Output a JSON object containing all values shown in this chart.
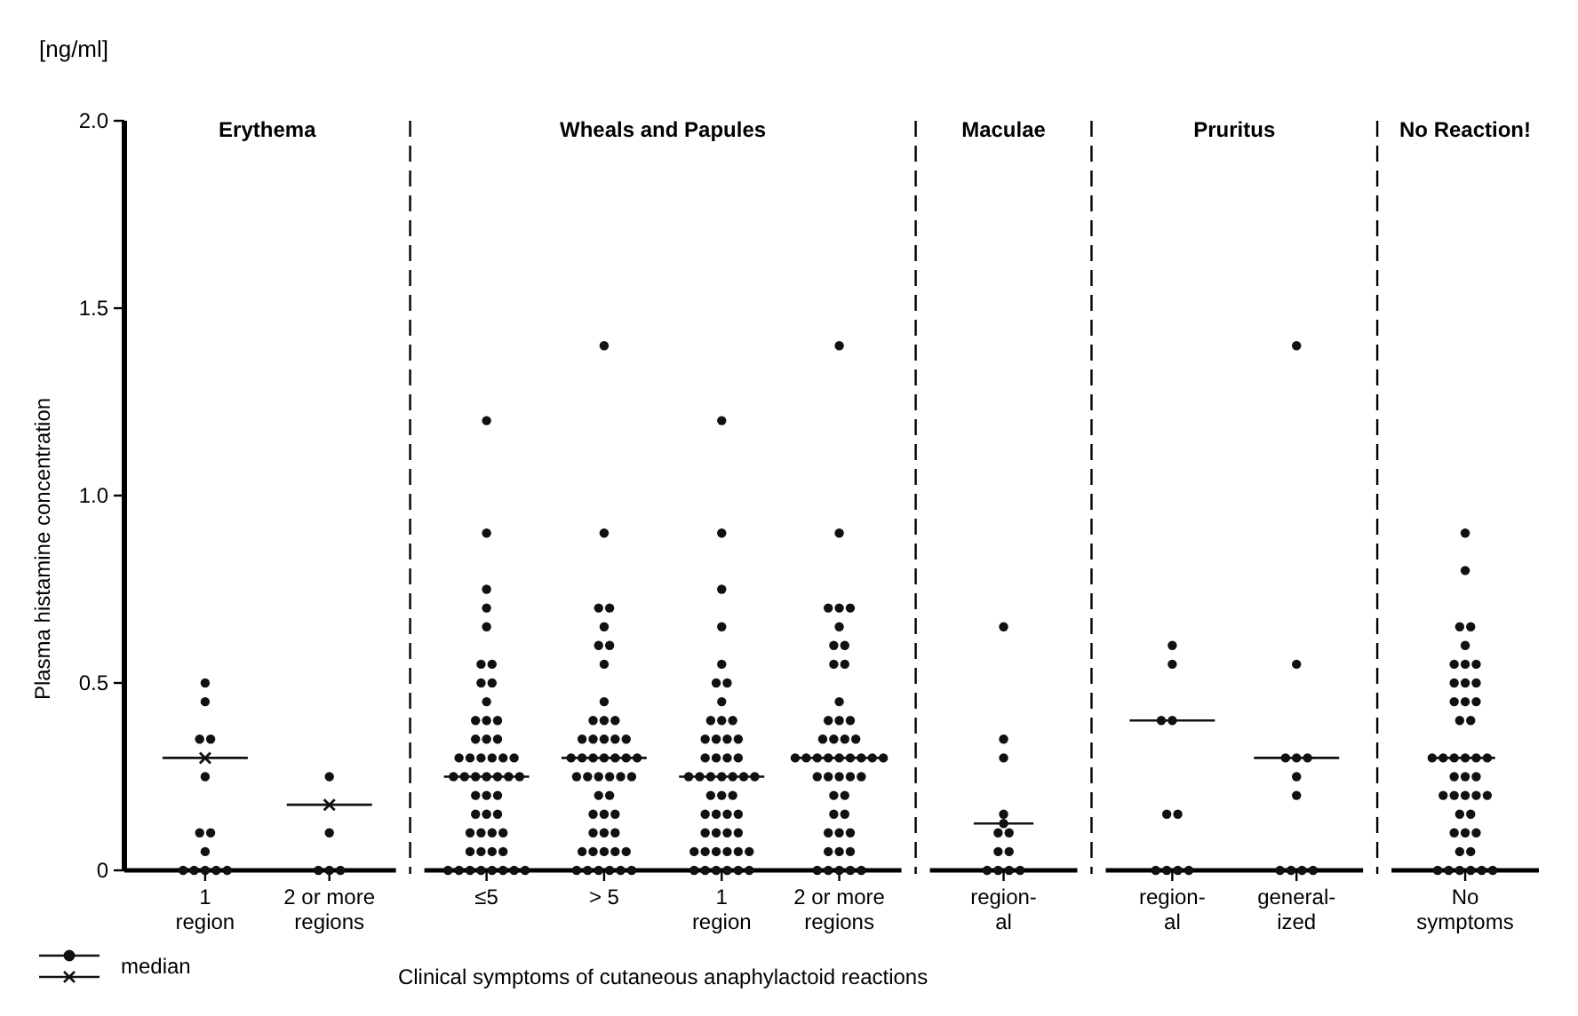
{
  "chart_data": [
    {
      "type": "scatter",
      "title": "Erythema",
      "ylabel": "Plasma histamine concentration",
      "annotations": [
        "[ng/ml]"
      ],
      "legend": "bottom left",
      "categories": [
        "1\nregion",
        "2 or more\nregions"
      ],
      "ylim": [
        0,
        2
      ],
      "yticks": [
        {
          "value": 0,
          "label": "0"
        },
        0.5,
        {
          "value": 1,
          "label": "1.0"
        },
        1.5,
        {
          "value": 2,
          "label": "2.0"
        }
      ],
      "series": [
        {
          "color": "#111111",
          "marker": "circle",
          "x": [
            "1\nregion",
            "1\nregion",
            "1\nregion",
            "1\nregion",
            "1\nregion",
            "1\nregion",
            "1\nregion",
            "1\nregion",
            "1\nregion",
            "1\nregion",
            "1\nregion",
            "1\nregion",
            "1\nregion",
            "2 or more\nregions",
            "2 or more\nregions",
            "2 or more\nregions",
            "2 or more\nregions",
            "2 or more\nregions"
          ],
          "values": [
            0.5,
            0.45,
            0.35,
            0.35,
            0.25,
            0.1,
            0.1,
            0.05,
            0,
            0,
            0,
            0,
            0,
            0.25,
            0.1,
            0,
            0,
            0
          ]
        },
        {
          "name": "median",
          "color": "#111111",
          "marker": "cross",
          "line_style": "solid",
          "x": [
            "1\nregion",
            "2 or more\nregions"
          ],
          "values": [
            0.3,
            0.175
          ]
        }
      ]
    },
    {
      "type": "scatter",
      "title": "Wheals and Papules",
      "xlabel": "Clinical symptoms of cutaneous anaphylactoid reactions",
      "tick_labels": "x",
      "categories": [
        "≤5",
        "> 5",
        "1\nregion",
        "2 or more\nregions"
      ],
      "ylim": [
        0,
        2
      ],
      "series": [
        {
          "color": "#111111",
          "marker": "circle",
          "x": [
            "≤5",
            "≤5",
            "≤5",
            "≤5",
            "≤5",
            "≤5",
            "≤5",
            "≤5",
            "≤5",
            "≤5",
            "≤5",
            "≤5",
            "≤5",
            "≤5",
            "≤5",
            "≤5",
            "≤5",
            "≤5",
            "≤5",
            "≤5",
            "≤5",
            "≤5",
            "≤5",
            "≤5",
            "≤5",
            "≤5",
            "≤5",
            "≤5",
            "≤5",
            "≤5",
            "≤5",
            "≤5",
            "≤5",
            "≤5",
            "≤5",
            "≤5",
            "≤5",
            "≤5",
            "≤5",
            "≤5",
            "≤5",
            "≤5",
            "≤5",
            "≤5",
            "≤5",
            "≤5",
            "≤5",
            "≤5",
            "≤5",
            "≤5"
          ],
          "values": [
            1.2,
            0.9,
            0.75,
            0.7,
            0.65,
            0.55,
            0.55,
            0.5,
            0.5,
            0.45,
            0.4,
            0.4,
            0.4,
            0.35,
            0.35,
            0.35,
            0.3,
            0.3,
            0.3,
            0.3,
            0.3,
            0.3,
            0.25,
            0.25,
            0.25,
            0.25,
            0.25,
            0.25,
            0.2,
            0.2,
            0.2,
            0.15,
            0.15,
            0.15,
            0.1,
            0.1,
            0.1,
            0.1,
            0.05,
            0.05,
            0.05,
            0.05,
            0,
            0,
            0,
            0,
            0,
            0,
            0,
            0
          ]
        },
        {
          "color": "#111111",
          "marker": "circle",
          "x": [
            "> 5",
            "> 5",
            "> 5",
            "> 5",
            "> 5",
            "> 5",
            "> 5",
            "> 5",
            "> 5",
            "> 5",
            "> 5",
            "> 5",
            "> 5",
            "> 5",
            "> 5",
            "> 5",
            "> 5",
            "> 5",
            "> 5",
            "> 5",
            "> 5",
            "> 5",
            "> 5",
            "> 5",
            "> 5",
            "> 5",
            "> 5",
            "> 5",
            "> 5",
            "> 5",
            "> 5",
            "> 5",
            "> 5",
            "> 5",
            "> 5",
            "> 5",
            "> 5",
            "> 5",
            "> 5",
            "> 5",
            "> 5",
            "> 5",
            "> 5",
            "> 5",
            "> 5",
            "> 5",
            "> 5",
            "> 5"
          ],
          "values": [
            1.4,
            0.9,
            0.7,
            0.7,
            0.65,
            0.6,
            0.6,
            0.55,
            0.45,
            0.4,
            0.4,
            0.4,
            0.35,
            0.35,
            0.35,
            0.35,
            0.35,
            0.3,
            0.3,
            0.3,
            0.3,
            0.3,
            0.3,
            0.25,
            0.25,
            0.25,
            0.25,
            0.25,
            0.25,
            0.2,
            0.2,
            0.15,
            0.15,
            0.15,
            0.1,
            0.1,
            0.1,
            0.05,
            0.05,
            0.05,
            0.05,
            0.05,
            0,
            0,
            0,
            0,
            0,
            0
          ]
        },
        {
          "color": "#111111",
          "marker": "circle",
          "x": [
            "1\nregion",
            "1\nregion",
            "1\nregion",
            "1\nregion",
            "1\nregion",
            "1\nregion",
            "1\nregion",
            "1\nregion",
            "1\nregion",
            "1\nregion",
            "1\nregion",
            "1\nregion",
            "1\nregion",
            "1\nregion",
            "1\nregion",
            "1\nregion",
            "1\nregion",
            "1\nregion",
            "1\nregion",
            "1\nregion",
            "1\nregion",
            "1\nregion",
            "1\nregion",
            "1\nregion",
            "1\nregion",
            "1\nregion",
            "1\nregion",
            "1\nregion",
            "1\nregion",
            "1\nregion",
            "1\nregion",
            "1\nregion",
            "1\nregion",
            "1\nregion",
            "1\nregion",
            "1\nregion",
            "1\nregion",
            "1\nregion",
            "1\nregion",
            "1\nregion",
            "1\nregion",
            "1\nregion",
            "1\nregion",
            "1\nregion",
            "1\nregion",
            "1\nregion",
            "1\nregion",
            "1\nregion"
          ],
          "values": [
            1.2,
            0.9,
            0.75,
            0.65,
            0.55,
            0.5,
            0.5,
            0.45,
            0.4,
            0.4,
            0.4,
            0.35,
            0.35,
            0.35,
            0.35,
            0.3,
            0.3,
            0.3,
            0.3,
            0.25,
            0.25,
            0.25,
            0.25,
            0.25,
            0.25,
            0.2,
            0.2,
            0.2,
            0.15,
            0.15,
            0.15,
            0.15,
            0.1,
            0.1,
            0.1,
            0.1,
            0.05,
            0.05,
            0.05,
            0.05,
            0.05,
            0.05,
            0,
            0,
            0,
            0,
            0,
            0
          ]
        },
        {
          "color": "#111111",
          "marker": "circle",
          "x": [
            "2 or more\nregions",
            "2 or more\nregions",
            "2 or more\nregions",
            "2 or more\nregions",
            "2 or more\nregions",
            "2 or more\nregions",
            "2 or more\nregions",
            "2 or more\nregions",
            "2 or more\nregions",
            "2 or more\nregions",
            "2 or more\nregions",
            "2 or more\nregions",
            "2 or more\nregions",
            "2 or more\nregions",
            "2 or more\nregions",
            "2 or more\nregions",
            "2 or more\nregions",
            "2 or more\nregions",
            "2 or more\nregions",
            "2 or more\nregions",
            "2 or more\nregions",
            "2 or more\nregions",
            "2 or more\nregions",
            "2 or more\nregions",
            "2 or more\nregions",
            "2 or more\nregions",
            "2 or more\nregions",
            "2 or more\nregions",
            "2 or more\nregions",
            "2 or more\nregions",
            "2 or more\nregions",
            "2 or more\nregions",
            "2 or more\nregions",
            "2 or more\nregions",
            "2 or more\nregions",
            "2 or more\nregions",
            "2 or more\nregions",
            "2 or more\nregions",
            "2 or more\nregions",
            "2 or more\nregions",
            "2 or more\nregions",
            "2 or more\nregions",
            "2 or more\nregions",
            "2 or more\nregions",
            "2 or more\nregions",
            "2 or more\nregions"
          ],
          "values": [
            1.4,
            0.9,
            0.7,
            0.7,
            0.7,
            0.65,
            0.6,
            0.6,
            0.55,
            0.55,
            0.45,
            0.4,
            0.4,
            0.4,
            0.35,
            0.35,
            0.35,
            0.35,
            0.3,
            0.3,
            0.3,
            0.3,
            0.3,
            0.3,
            0.3,
            0.3,
            0.25,
            0.25,
            0.25,
            0.25,
            0.25,
            0.2,
            0.2,
            0.15,
            0.15,
            0.1,
            0.1,
            0.1,
            0.05,
            0.05,
            0.05,
            0,
            0,
            0,
            0,
            0
          ]
        },
        {
          "color": "#111111",
          "marker": "circle",
          "line_style": "solid",
          "x": [
            "≤5",
            "> 5",
            "1\nregion",
            "2 or more\nregions"
          ],
          "values": [
            0.25,
            0.3,
            0.25,
            0.3
          ]
        }
      ]
    },
    {
      "type": "scatter",
      "title": "Maculae",
      "tick_labels": "x",
      "categories": [
        "region-\nal"
      ],
      "ylim": [
        0,
        2
      ],
      "series": [
        {
          "color": "#111111",
          "marker": "circle",
          "x": [
            "region-\nal",
            "region-\nal",
            "region-\nal",
            "region-\nal",
            "region-\nal",
            "region-\nal",
            "region-\nal",
            "region-\nal",
            "region-\nal",
            "region-\nal",
            "region-\nal",
            "region-\nal"
          ],
          "values": [
            0.65,
            0.35,
            0.3,
            0.15,
            0.1,
            0.1,
            0.05,
            0.05,
            0,
            0,
            0,
            0
          ]
        },
        {
          "color": "#111111",
          "marker": "circle",
          "line_style": "solid",
          "x": [
            "region-\nal"
          ],
          "values": [
            0.125
          ]
        }
      ]
    },
    {
      "type": "scatter",
      "title": "Pruritus",
      "tick_labels": "x",
      "categories": [
        "region-\nal",
        "general-\nized"
      ],
      "ylim": [
        0,
        2
      ],
      "series": [
        {
          "color": "#111111",
          "marker": "circle",
          "x": [
            "region-\nal",
            "region-\nal",
            "region-\nal",
            "region-\nal",
            "region-\nal",
            "region-\nal",
            "region-\nal",
            "region-\nal",
            "region-\nal",
            "general-\nized",
            "general-\nized",
            "general-\nized",
            "general-\nized",
            "general-\nized",
            "general-\nized",
            "general-\nized",
            "general-\nized",
            "general-\nized",
            "general-\nized"
          ],
          "values": [
            0.6,
            0.55,
            0.4,
            0.15,
            0.15,
            0,
            0,
            0,
            0,
            1.4,
            0.55,
            0.3,
            0.3,
            0.25,
            0.2,
            0,
            0,
            0,
            0
          ]
        },
        {
          "color": "#111111",
          "marker": "circle",
          "line_style": "solid",
          "x": [
            "region-\nal",
            "general-\nized"
          ],
          "values": [
            0.4,
            0.3
          ]
        }
      ]
    },
    {
      "type": "scatter",
      "title": "No Reaction!",
      "tick_labels": "x",
      "categories": [
        "No\nsymptoms"
      ],
      "ylim": [
        0,
        2
      ],
      "series": [
        {
          "color": "#111111",
          "marker": "circle",
          "x": [
            "No\nsymptoms",
            "No\nsymptoms",
            "No\nsymptoms",
            "No\nsymptoms",
            "No\nsymptoms",
            "No\nsymptoms",
            "No\nsymptoms",
            "No\nsymptoms",
            "No\nsymptoms",
            "No\nsymptoms",
            "No\nsymptoms",
            "No\nsymptoms",
            "No\nsymptoms",
            "No\nsymptoms",
            "No\nsymptoms",
            "No\nsymptoms",
            "No\nsymptoms",
            "No\nsymptoms",
            "No\nsymptoms",
            "No\nsymptoms",
            "No\nsymptoms",
            "No\nsymptoms",
            "No\nsymptoms",
            "No\nsymptoms",
            "No\nsymptoms",
            "No\nsymptoms",
            "No\nsymptoms",
            "No\nsymptoms",
            "No\nsymptoms",
            "No\nsymptoms",
            "No\nsymptoms",
            "No\nsymptoms",
            "No\nsymptoms",
            "No\nsymptoms",
            "No\nsymptoms",
            "No\nsymptoms",
            "No\nsymptoms",
            "No\nsymptoms",
            "No\nsymptoms",
            "No\nsymptoms",
            "No\nsymptoms",
            "No\nsymptoms"
          ],
          "values": [
            0.9,
            0.8,
            0.65,
            0.65,
            0.6,
            0.55,
            0.55,
            0.55,
            0.5,
            0.5,
            0.5,
            0.45,
            0.45,
            0.45,
            0.4,
            0.4,
            0.3,
            0.3,
            0.3,
            0.3,
            0.3,
            0.25,
            0.25,
            0.25,
            0.2,
            0.2,
            0.2,
            0.2,
            0.2,
            0.15,
            0.15,
            0.1,
            0.1,
            0.1,
            0.05,
            0.05,
            0,
            0,
            0,
            0,
            0,
            0
          ]
        },
        {
          "color": "#111111",
          "marker": "circle",
          "line_style": "solid",
          "x": [
            "No\nsymptoms"
          ],
          "values": [
            0.3
          ]
        }
      ]
    }
  ]
}
